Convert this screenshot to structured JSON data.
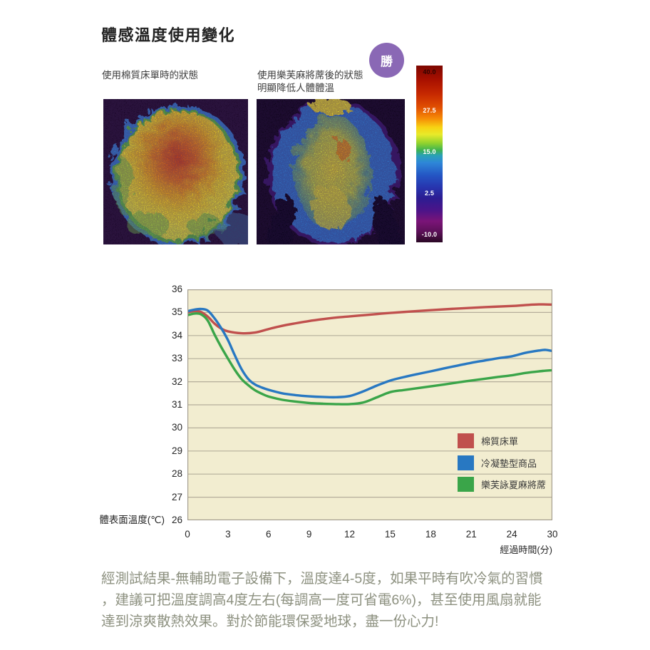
{
  "header": {
    "title": "體感溫度使用變化",
    "left_caption": "使用棉質床單時的狀態",
    "right_caption": "使用樂芙麻將蓆後的狀態\n明顯降低人體體溫",
    "badge": "勝",
    "badge_color": "#8a68b5"
  },
  "colorbar": {
    "labels": [
      "40.0",
      "27.5",
      "15.0",
      "2.5",
      "-10.0"
    ]
  },
  "chart_data": {
    "type": "line",
    "title": "",
    "ylabel": "體表面溫度(℃)",
    "xlabel": "經過時間(分)",
    "ylim": [
      26,
      36
    ],
    "yticks": [
      36,
      35,
      34,
      33,
      32,
      31,
      30,
      29,
      28,
      27,
      26
    ],
    "xticks": [
      0,
      3,
      6,
      9,
      12,
      15,
      18,
      21,
      24,
      30
    ],
    "grid": "horizontal",
    "legend_position": "inside-bottom-right",
    "plot_bg": "#f2edd0",
    "grid_color": "#b5ae9b",
    "border_color": "#a19b8c",
    "series": [
      {
        "name": "棉質床單",
        "key": "cotton-sheet",
        "color": "#c0504d",
        "points": [
          [
            0,
            35.0
          ],
          [
            0.5,
            35.06
          ],
          [
            1,
            35.02
          ],
          [
            1.5,
            34.82
          ],
          [
            2,
            34.52
          ],
          [
            2.5,
            34.3
          ],
          [
            3,
            34.18
          ],
          [
            4,
            34.1
          ],
          [
            5,
            34.13
          ],
          [
            6,
            34.28
          ],
          [
            7,
            34.42
          ],
          [
            8,
            34.53
          ],
          [
            9,
            34.63
          ],
          [
            10,
            34.71
          ],
          [
            11,
            34.78
          ],
          [
            12,
            34.83
          ],
          [
            13,
            34.88
          ],
          [
            14,
            34.93
          ],
          [
            15,
            34.98
          ],
          [
            16,
            35.02
          ],
          [
            18,
            35.1
          ],
          [
            20,
            35.17
          ],
          [
            22,
            35.23
          ],
          [
            24,
            35.28
          ],
          [
            26,
            35.32
          ],
          [
            28,
            35.35
          ],
          [
            30,
            35.34
          ]
        ]
      },
      {
        "name": "冷凝墊型商品",
        "key": "cooling-pad",
        "color": "#2878c2",
        "points": [
          [
            0,
            35.05
          ],
          [
            0.5,
            35.12
          ],
          [
            1,
            35.15
          ],
          [
            1.5,
            35.08
          ],
          [
            2,
            34.75
          ],
          [
            2.5,
            34.32
          ],
          [
            3,
            33.8
          ],
          [
            3.5,
            33.15
          ],
          [
            4,
            32.55
          ],
          [
            4.5,
            32.12
          ],
          [
            5,
            31.88
          ],
          [
            5.5,
            31.75
          ],
          [
            6,
            31.65
          ],
          [
            7,
            31.5
          ],
          [
            8,
            31.42
          ],
          [
            9,
            31.37
          ],
          [
            10,
            31.34
          ],
          [
            11,
            31.33
          ],
          [
            12,
            31.38
          ],
          [
            13,
            31.58
          ],
          [
            14,
            31.83
          ],
          [
            15,
            32.05
          ],
          [
            16,
            32.2
          ],
          [
            17,
            32.33
          ],
          [
            18,
            32.45
          ],
          [
            19,
            32.58
          ],
          [
            20,
            32.7
          ],
          [
            21,
            32.82
          ],
          [
            22,
            32.92
          ],
          [
            23,
            33.02
          ],
          [
            24,
            33.1
          ],
          [
            26,
            33.25
          ],
          [
            28,
            33.35
          ],
          [
            29,
            33.38
          ],
          [
            30,
            33.33
          ]
        ]
      },
      {
        "name": "樂芙詠夏麻將蓆",
        "key": "hemp-mat",
        "color": "#3aa549",
        "points": [
          [
            0,
            34.88
          ],
          [
            0.5,
            34.95
          ],
          [
            1,
            34.92
          ],
          [
            1.5,
            34.65
          ],
          [
            2,
            34.05
          ],
          [
            2.5,
            33.5
          ],
          [
            3,
            33.0
          ],
          [
            3.5,
            32.52
          ],
          [
            4,
            32.12
          ],
          [
            4.5,
            31.85
          ],
          [
            5,
            31.63
          ],
          [
            5.5,
            31.48
          ],
          [
            6,
            31.36
          ],
          [
            7,
            31.22
          ],
          [
            8,
            31.14
          ],
          [
            9,
            31.08
          ],
          [
            10,
            31.05
          ],
          [
            11,
            31.03
          ],
          [
            12,
            31.03
          ],
          [
            13,
            31.1
          ],
          [
            14,
            31.32
          ],
          [
            15,
            31.55
          ],
          [
            16,
            31.64
          ],
          [
            17,
            31.72
          ],
          [
            18,
            31.8
          ],
          [
            19,
            31.88
          ],
          [
            20,
            31.97
          ],
          [
            21,
            32.05
          ],
          [
            22,
            32.13
          ],
          [
            23,
            32.21
          ],
          [
            24,
            32.28
          ],
          [
            26,
            32.38
          ],
          [
            28,
            32.45
          ],
          [
            30,
            32.5
          ]
        ]
      }
    ]
  },
  "footer": {
    "text": "經測試結果-無輔助電子設備下，溫度達4-5度，如果平時有吹冷氣的習慣\n，建議可把溫度調高4度左右(每調高一度可省電6%)，甚至使用風扇就能\n達到涼爽散熱效果。對於節能環保愛地球，盡一份心力!"
  }
}
